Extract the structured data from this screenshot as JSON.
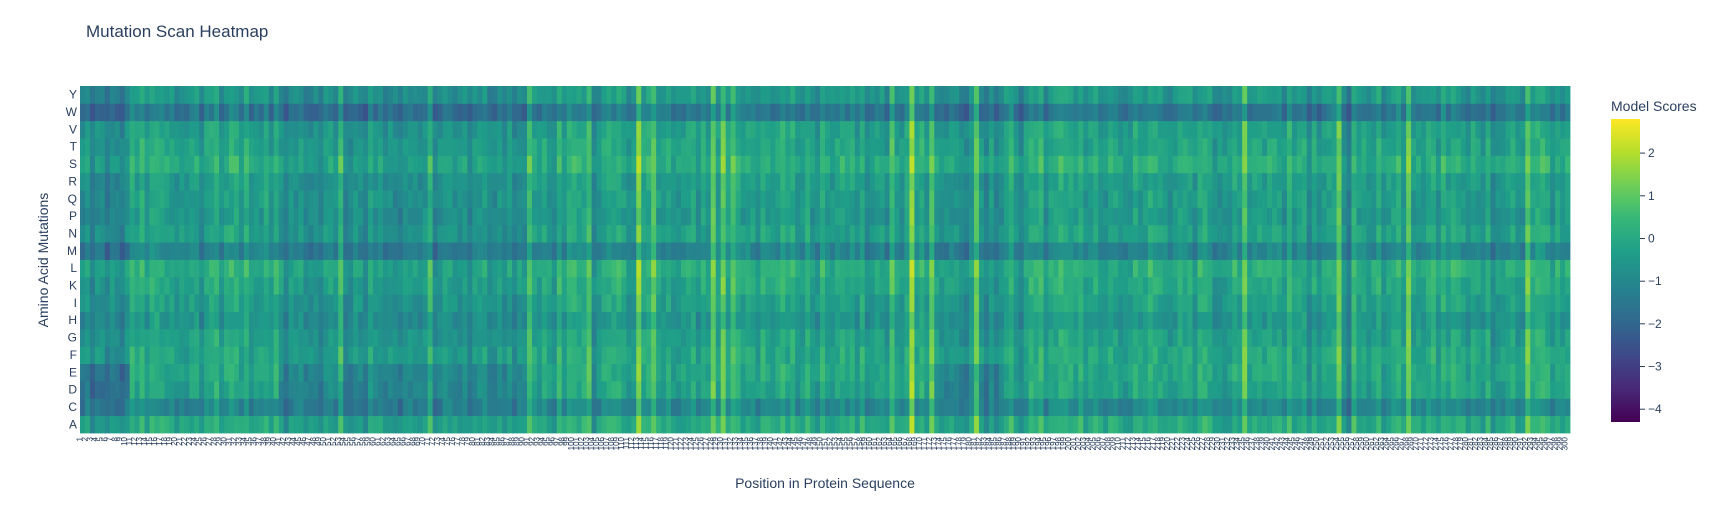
{
  "chart_data": {
    "type": "heatmap",
    "title": "Mutation Scan Heatmap",
    "xlabel": "Position in Protein Sequence",
    "ylabel": "Amino Acid Mutations",
    "rows": [
      "A",
      "C",
      "D",
      "E",
      "F",
      "G",
      "H",
      "I",
      "K",
      "L",
      "M",
      "N",
      "P",
      "Q",
      "R",
      "S",
      "T",
      "V",
      "W",
      "Y"
    ],
    "num_positions": 300,
    "colorscale": "Viridis",
    "zmin": -4.3,
    "zmax": 2.8,
    "colorbar": {
      "title": "Model Scores",
      "ticks": [
        2,
        1,
        0,
        -1,
        -2,
        -3,
        -4
      ],
      "tick_labels": [
        "2",
        "1",
        "0",
        "−1",
        "−2",
        "−3",
        "−4"
      ]
    },
    "row_mean_scores": {
      "A": 0.1,
      "C": -0.9,
      "D": -0.1,
      "E": 0.0,
      "F": 0.0,
      "G": -0.2,
      "H": -0.5,
      "I": -0.2,
      "K": 0.0,
      "L": 0.2,
      "M": -1.0,
      "N": -0.2,
      "P": -0.4,
      "Q": -0.3,
      "R": -0.3,
      "S": 0.2,
      "T": -0.1,
      "V": -0.2,
      "W": -1.4,
      "Y": -0.4
    },
    "notes_visible": "Dense per-position x tick labels (unreadable at source resolution)"
  }
}
